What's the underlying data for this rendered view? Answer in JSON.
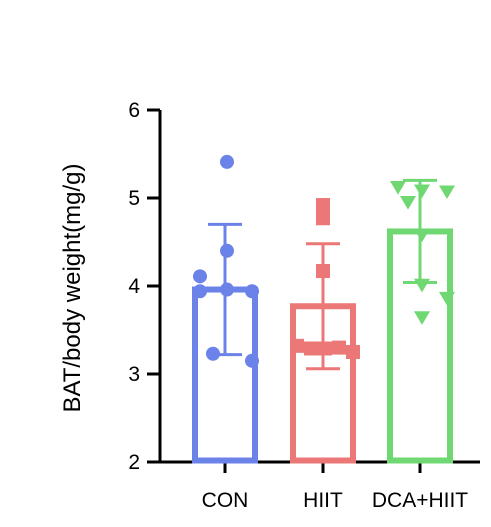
{
  "chart_data": {
    "type": "bar",
    "title": "",
    "xlabel": "",
    "ylabel": "BAT/body weight(mg/g)",
    "ylim": [
      2,
      6
    ],
    "yticks": [
      2,
      3,
      4,
      5,
      6
    ],
    "ytick_labels": [
      "2",
      "3",
      "4",
      "5",
      "6"
    ],
    "categories": [
      "CON",
      "HIIT",
      "DCA+HIIT"
    ],
    "means": [
      3.96,
      3.77,
      4.62
    ],
    "error": [
      0.74,
      0.71,
      0.58
    ],
    "points": [
      [
        5.41,
        4.11,
        4.4,
        3.96,
        3.94,
        3.94,
        3.15,
        3.23
      ],
      [
        4.92,
        4.77,
        4.17,
        3.32,
        3.29,
        3.29,
        3.3,
        3.25
      ],
      [
        5.12,
        5.08,
        5.07,
        4.95,
        4.58,
        4.01,
        3.86,
        3.64
      ]
    ],
    "colors": [
      "#6b82e8",
      "#ec7777",
      "#70d872"
    ],
    "markers": [
      "circle",
      "square",
      "triangle-down"
    ],
    "grid": false,
    "legend": "none"
  }
}
